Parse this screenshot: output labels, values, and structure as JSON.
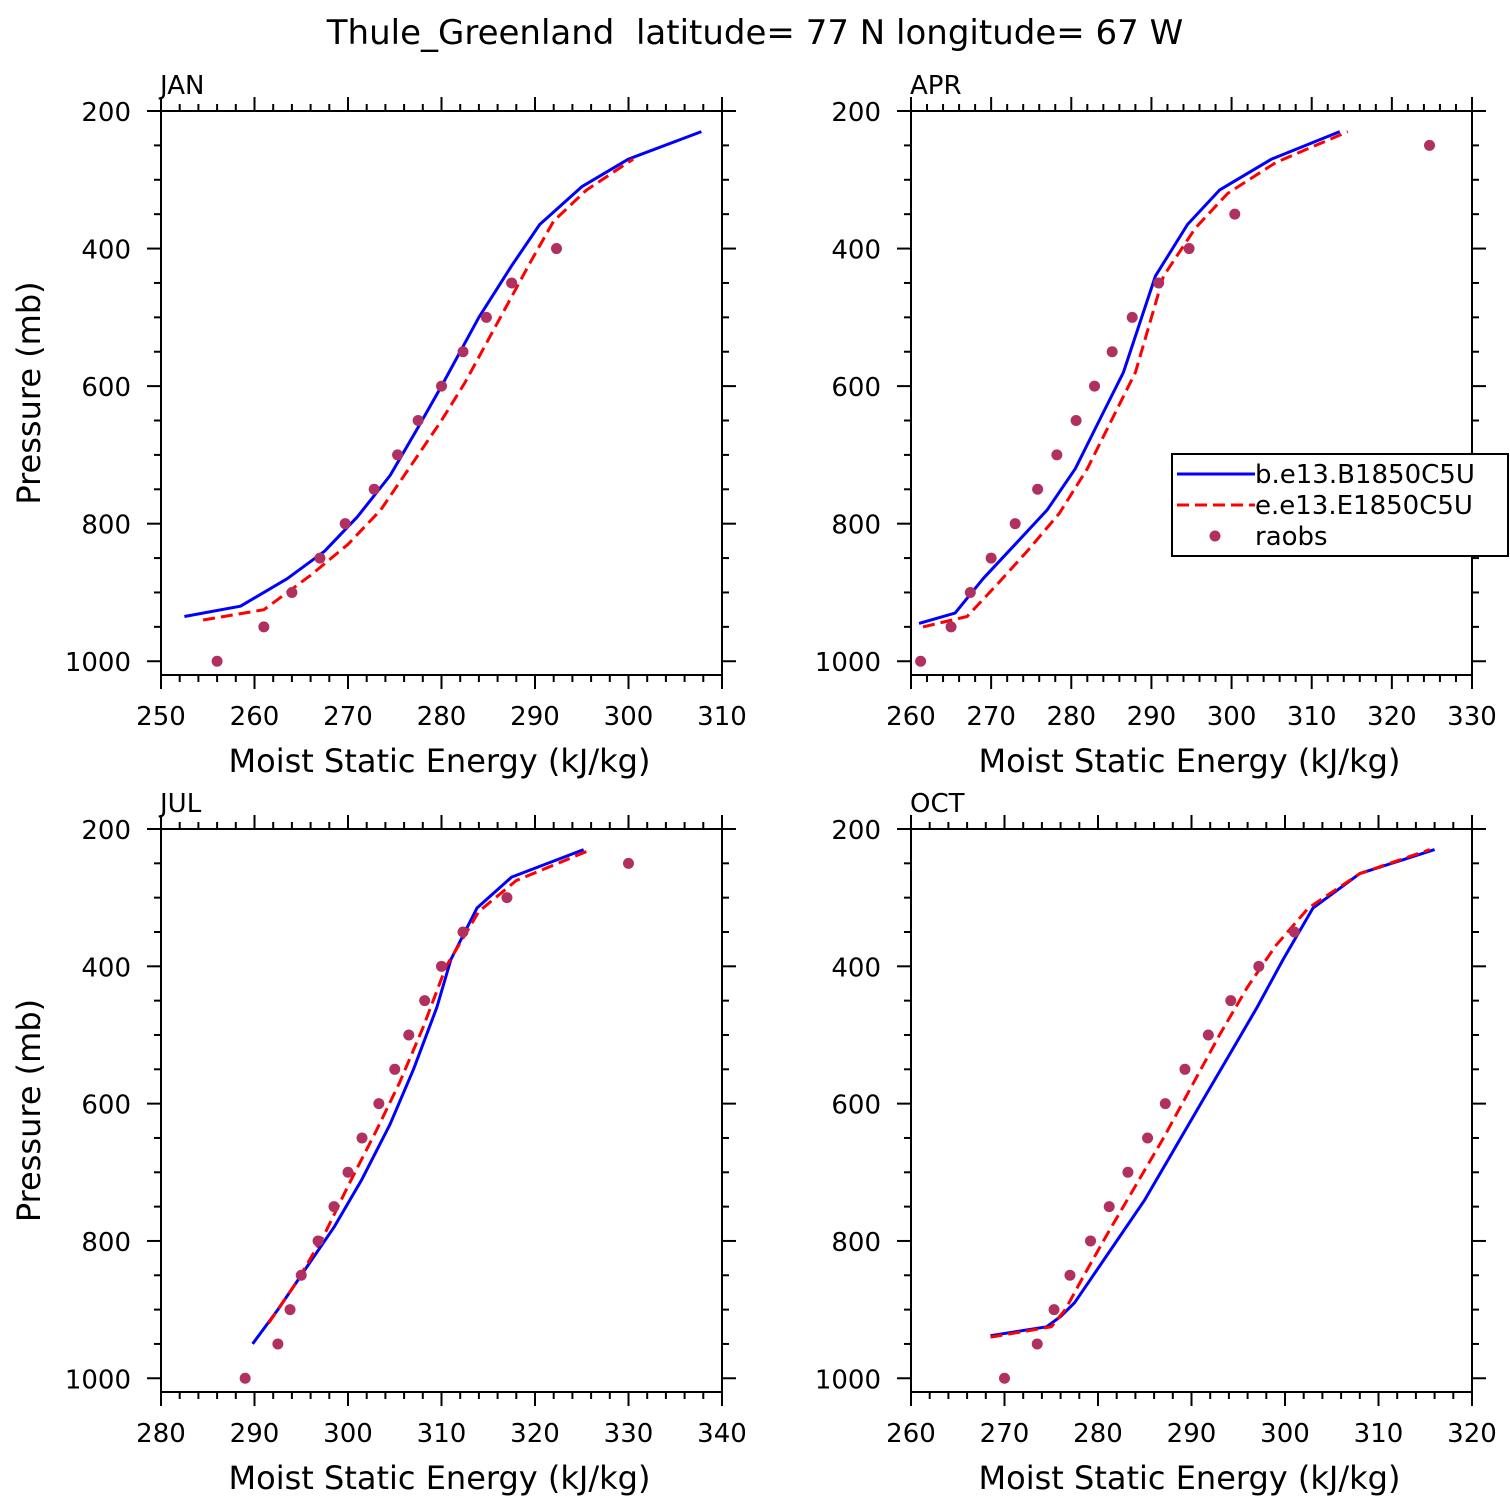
{
  "title": "Thule_Greenland  latitude= 77 N longitude= 67 W",
  "legend": {
    "entries": [
      {
        "label": "b.e13.B1850C5U",
        "color": "#0000ff",
        "style": "solid"
      },
      {
        "label": "e.e13.E1850C5U",
        "color": "#ff0000",
        "style": "dashed"
      },
      {
        "label": "raobs",
        "color": "#b03060",
        "style": "marker"
      }
    ]
  },
  "chart_data": [
    {
      "type": "line",
      "panel_label": "JAN",
      "xlabel": "Moist Static Energy (kJ/kg)",
      "ylabel": "Pressure (mb)",
      "xlim": [
        250,
        310
      ],
      "ylim": [
        1020,
        200
      ],
      "xticks": [
        "250",
        "260",
        "270",
        "280",
        "290",
        "300",
        "310"
      ],
      "yticks": [
        "200",
        "400",
        "600",
        "800",
        "1000"
      ],
      "series": [
        {
          "name": "b.e13.B1850C5U",
          "x": [
            252.5,
            258.5,
            263.5,
            267.5,
            271,
            274.5,
            277.5,
            280,
            282,
            284,
            287.5,
            290.5,
            295,
            300,
            307.8
          ],
          "y": [
            935,
            920,
            880,
            840,
            790,
            730,
            660,
            600,
            550,
            500,
            425,
            365,
            310,
            270,
            230
          ]
        },
        {
          "name": "e.e13.E1850C5U",
          "x": [
            254.5,
            261,
            266,
            270,
            273.5,
            277,
            280,
            282.5,
            284.5,
            286.5,
            289.5,
            292,
            295.5,
            300.5
          ],
          "y": [
            940,
            925,
            875,
            830,
            780,
            710,
            650,
            595,
            545,
            495,
            420,
            360,
            315,
            270
          ]
        },
        {
          "name": "raobs",
          "x": [
            256,
            261,
            264,
            267,
            269.7,
            272.8,
            275.3,
            277.5,
            280,
            282.3,
            284.8,
            287.5,
            292.3
          ],
          "y": [
            1000,
            950,
            900,
            850,
            800,
            750,
            700,
            650,
            600,
            550,
            500,
            450,
            400
          ]
        }
      ]
    },
    {
      "type": "line",
      "panel_label": "APR",
      "xlabel": "Moist Static Energy (kJ/kg)",
      "ylabel": "",
      "xlim": [
        260,
        330
      ],
      "ylim": [
        1020,
        200
      ],
      "xticks": [
        "260",
        "270",
        "280",
        "290",
        "300",
        "310",
        "320",
        "330"
      ],
      "yticks": [
        "200",
        "400",
        "600",
        "800",
        "1000"
      ],
      "series": [
        {
          "name": "b.e13.B1850C5U",
          "x": [
            261,
            265.5,
            269,
            273,
            277,
            280.5,
            283.5,
            286.5,
            290.5,
            294.5,
            298.5,
            305,
            313.5
          ],
          "y": [
            945,
            930,
            880,
            830,
            780,
            720,
            650,
            580,
            440,
            365,
            315,
            270,
            230
          ]
        },
        {
          "name": "e.e13.E1850C5U",
          "x": [
            261.5,
            267,
            271,
            274.5,
            278.5,
            282,
            285,
            288,
            291.5,
            295.5,
            299.5,
            305.5,
            314.5
          ],
          "y": [
            950,
            935,
            885,
            840,
            785,
            720,
            650,
            580,
            440,
            370,
            320,
            275,
            230
          ]
        },
        {
          "name": "raobs",
          "x": [
            261.2,
            265,
            267.4,
            270,
            273,
            275.8,
            278.2,
            280.6,
            282.9,
            285.1,
            287.6,
            290.9,
            294.7,
            300.4,
            324.7
          ],
          "y": [
            1000,
            950,
            900,
            850,
            800,
            750,
            700,
            650,
            600,
            550,
            500,
            450,
            400,
            350,
            250
          ]
        }
      ]
    },
    {
      "type": "line",
      "panel_label": "JUL",
      "xlabel": "Moist Static Energy (kJ/kg)",
      "ylabel": "Pressure (mb)",
      "xlim": [
        280,
        340
      ],
      "ylim": [
        1020,
        200
      ],
      "xticks": [
        "280",
        "290",
        "300",
        "310",
        "320",
        "330",
        "340"
      ],
      "yticks": [
        "200",
        "400",
        "600",
        "800",
        "1000"
      ],
      "series": [
        {
          "name": "b.e13.B1850C5U",
          "x": [
            289.8,
            292.5,
            295.5,
            298.5,
            301.5,
            304.5,
            307,
            309.5,
            311,
            313.8,
            317.5,
            325.2
          ],
          "y": [
            950,
            900,
            840,
            780,
            710,
            630,
            550,
            460,
            390,
            315,
            270,
            230
          ]
        },
        {
          "name": "e.e13.E1850C5U",
          "x": [
            291.5,
            294.5,
            297.5,
            300,
            303,
            305.5,
            308,
            310.5,
            314,
            318,
            326
          ],
          "y": [
            920,
            860,
            790,
            720,
            640,
            570,
            490,
            400,
            320,
            275,
            230
          ]
        },
        {
          "name": "raobs",
          "x": [
            289,
            292.5,
            293.8,
            295,
            296.8,
            298.5,
            300,
            301.5,
            303.3,
            305,
            306.5,
            308.2,
            310,
            312.3,
            317,
            330
          ],
          "y": [
            1000,
            950,
            900,
            850,
            800,
            750,
            700,
            650,
            600,
            550,
            500,
            450,
            400,
            350,
            300,
            250
          ]
        }
      ]
    },
    {
      "type": "line",
      "panel_label": "OCT",
      "xlabel": "Moist Static Energy (kJ/kg)",
      "ylabel": "",
      "xlim": [
        260,
        320
      ],
      "ylim": [
        1020,
        200
      ],
      "xticks": [
        "260",
        "270",
        "280",
        "290",
        "300",
        "310",
        "320"
      ],
      "yticks": [
        "200",
        "400",
        "600",
        "800",
        "1000"
      ],
      "series": [
        {
          "name": "b.e13.B1850C5U",
          "x": [
            268.5,
            274.5,
            276,
            277.5,
            279.5,
            282,
            285,
            288,
            291,
            294,
            297,
            299.8,
            303,
            308,
            316
          ],
          "y": [
            938,
            925,
            910,
            890,
            850,
            800,
            740,
            670,
            600,
            530,
            460,
            390,
            315,
            265,
            230
          ]
        },
        {
          "name": "e.e13.E1850C5U",
          "x": [
            268.5,
            275,
            276.5,
            278.5,
            281,
            284,
            287,
            290,
            293,
            296,
            299,
            302.5,
            308,
            315.5
          ],
          "y": [
            940,
            925,
            900,
            850,
            790,
            720,
            650,
            575,
            500,
            430,
            370,
            315,
            265,
            230
          ]
        },
        {
          "name": "raobs",
          "x": [
            270,
            273.5,
            275.3,
            277,
            279.2,
            281.2,
            283.2,
            285.3,
            287.2,
            289.3,
            291.8,
            294.2,
            297.2,
            301
          ],
          "y": [
            1000,
            950,
            900,
            850,
            800,
            750,
            700,
            650,
            600,
            550,
            500,
            450,
            400,
            350
          ]
        }
      ]
    }
  ]
}
